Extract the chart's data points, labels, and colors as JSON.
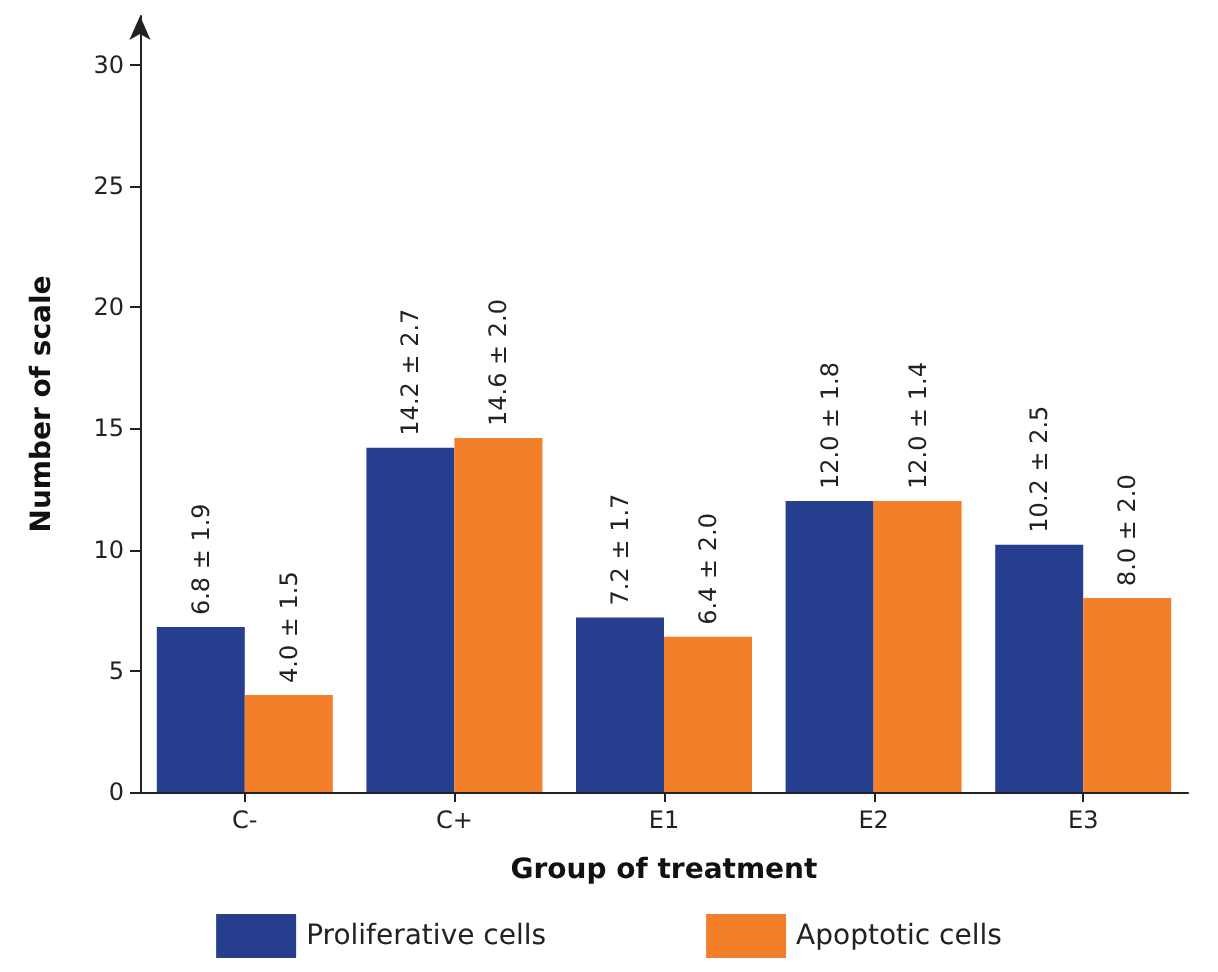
{
  "chart_data": {
    "type": "bar",
    "xlabel": "Group of treatment",
    "ylabel": "Number of scale",
    "categories": [
      "C-",
      "C+",
      "E1",
      "E2",
      "E3"
    ],
    "series": [
      {
        "name": "Proliferative cells",
        "color": "#253f8e",
        "values": [
          6.8,
          14.2,
          7.2,
          12.0,
          10.2
        ],
        "value_labels": [
          "6.8 ± 1.9",
          "14.2 ± 2.7",
          "7.2 ± 1.7",
          "12.0 ± 1.8",
          "10.2 ± 2.5"
        ]
      },
      {
        "name": "Apoptotic cells",
        "color": "#f47f2a",
        "values": [
          4.0,
          14.6,
          6.4,
          12.0,
          8.0
        ],
        "value_labels": [
          "4.0 ± 1.5",
          "14.6 ± 2.0",
          "6.4 ± 2.0",
          "12.0 ± 1.4",
          "8.0 ± 2.0"
        ]
      }
    ],
    "ylim": [
      0,
      32
    ],
    "yticks": [
      0,
      5,
      10,
      15,
      20,
      25,
      30
    ],
    "grid": false,
    "legend": "bottom"
  }
}
